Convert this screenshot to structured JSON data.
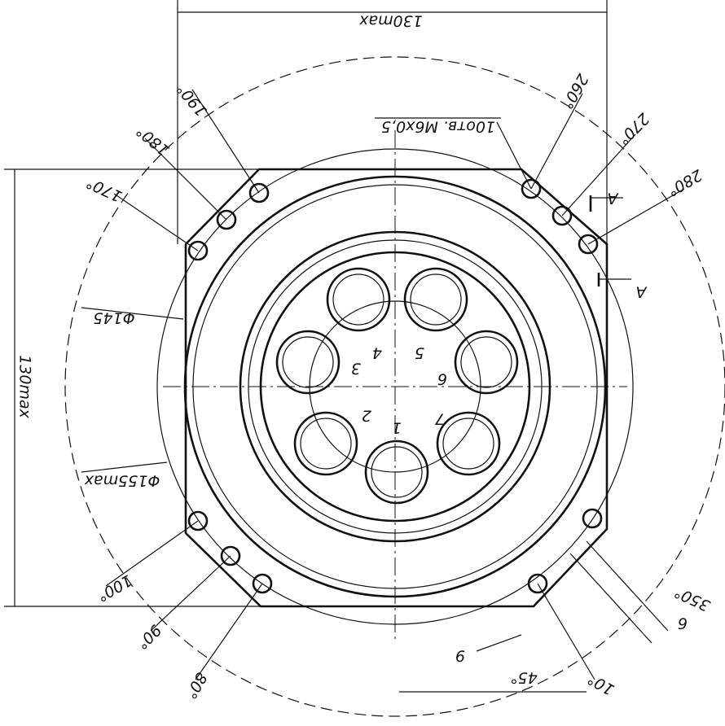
{
  "dimensions": {
    "width": "130max",
    "height": "130max",
    "holes": "10отв. M6x0,5",
    "dia_inner": "Φ145",
    "dia_outer": "Φ155max",
    "gap": "6",
    "offset": "9",
    "section": [
      "A",
      "A"
    ]
  },
  "angles": [
    "190°",
    "180°",
    "170°",
    "260°",
    "270°",
    "280°",
    "100°",
    "90°",
    "80°",
    "350°",
    "10°",
    "45°"
  ],
  "pins": [
    "1",
    "2",
    "3",
    "4",
    "5",
    "6",
    "7"
  ]
}
